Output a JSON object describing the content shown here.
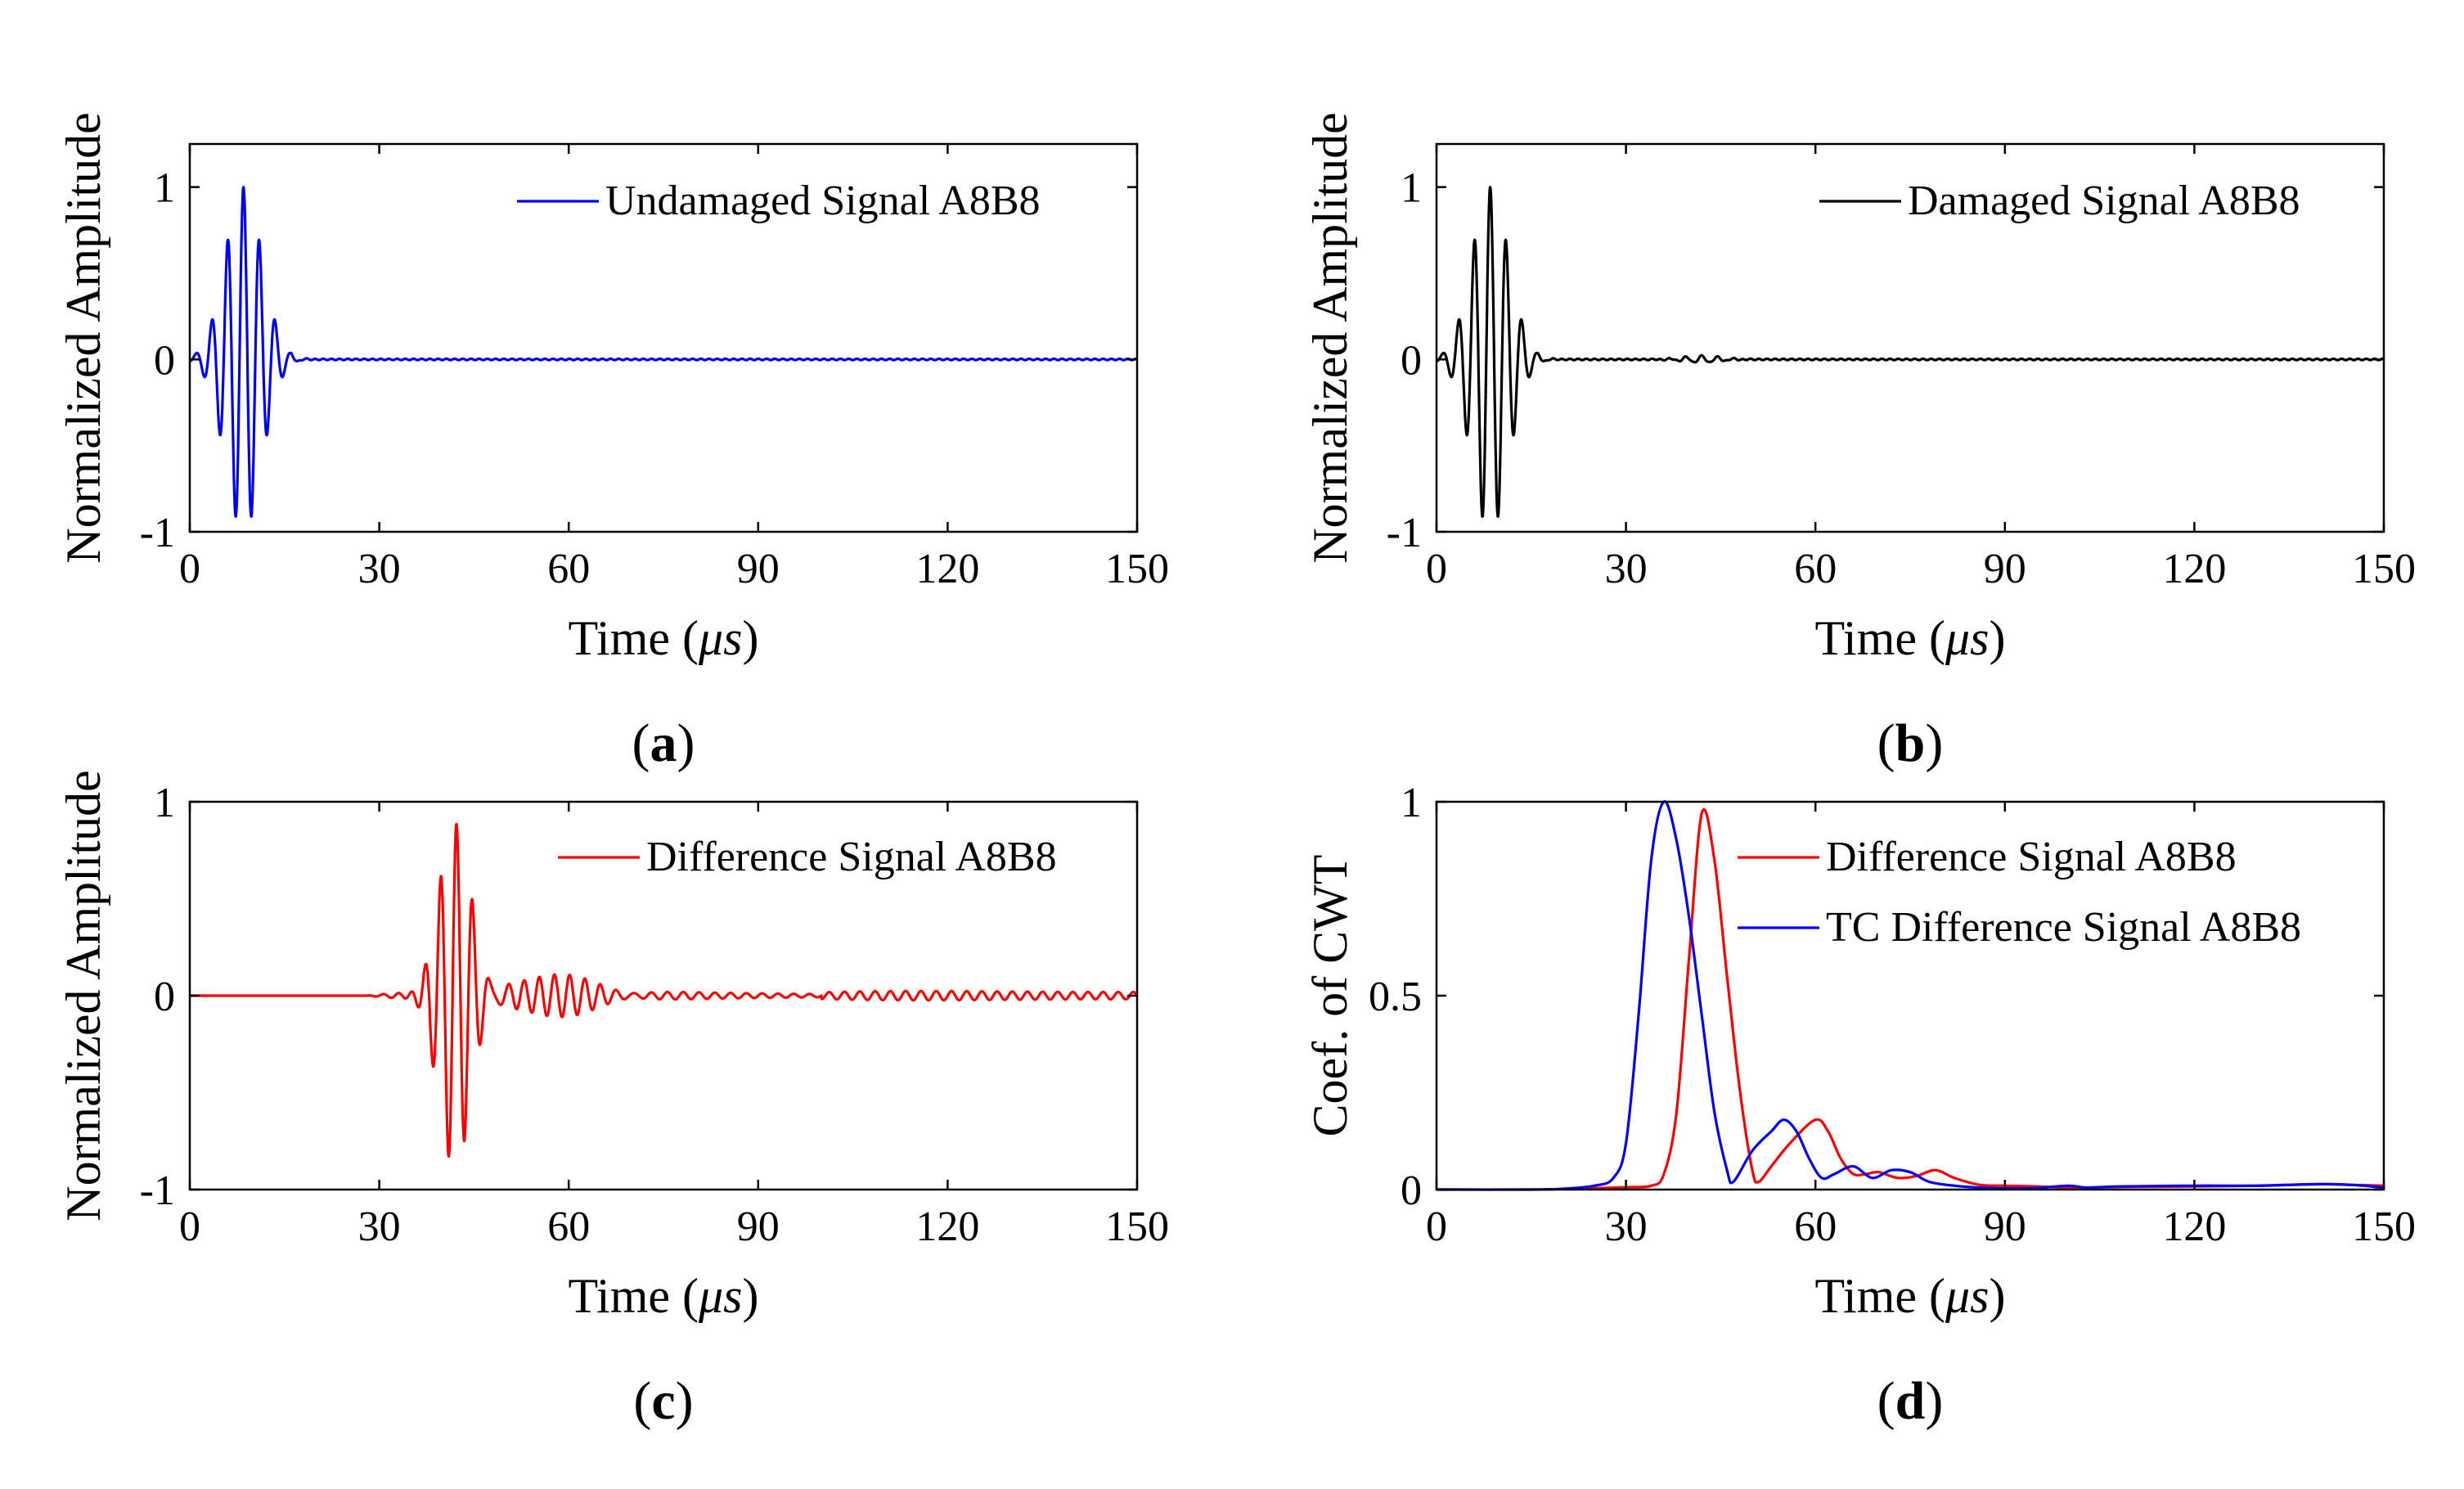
{
  "chart_data": [
    {
      "id": "a",
      "type": "line",
      "panel_label": "a",
      "xlabel": "Time (μs)",
      "xlabel_text": "Time (",
      "xlabel_unit": "μs",
      "xlabel_close": ")",
      "ylabel": "Normalized Amplitude",
      "xlim": [
        0,
        150
      ],
      "ylim": [
        -1,
        1.25
      ],
      "xticks": [
        0,
        30,
        60,
        90,
        120,
        150
      ],
      "yticks": [
        -1,
        0,
        1
      ],
      "legend_position": "top-right",
      "series": [
        {
          "name": "Undamaged Signal A8B8",
          "color": "#0000ff",
          "kind": "burst",
          "center": 8.5,
          "period": 2.5,
          "amp": 1.0,
          "sigma": 2.9,
          "noise": 0.004
        }
      ]
    },
    {
      "id": "b",
      "type": "line",
      "panel_label": "b",
      "xlabel": "Time (μs)",
      "xlabel_text": "Time (",
      "xlabel_unit": "μs",
      "xlabel_close": ")",
      "ylabel": "Normalized Amplitude",
      "xlim": [
        0,
        150
      ],
      "ylim": [
        -1,
        1.25
      ],
      "xticks": [
        0,
        30,
        60,
        90,
        120,
        150
      ],
      "yticks": [
        -1,
        0,
        1
      ],
      "legend_position": "top-right",
      "series": [
        {
          "name": "Damaged Signal A8B8",
          "color": "#000000",
          "kind": "burst",
          "center": 8.5,
          "period": 2.5,
          "amp": 1.0,
          "sigma": 2.9,
          "noise": 0.004,
          "echo": {
            "center": 42,
            "amp": 0.02,
            "sigma": 3
          }
        }
      ]
    },
    {
      "id": "c",
      "type": "line",
      "panel_label": "c",
      "xlabel": "Time (μs)",
      "xlabel_text": "Time (",
      "xlabel_unit": "μs",
      "xlabel_close": ")",
      "ylabel": "Normalized Amplitude",
      "xlim": [
        0,
        150
      ],
      "ylim": [
        -1,
        1
      ],
      "xticks": [
        0,
        30,
        60,
        90,
        120,
        150
      ],
      "yticks": [
        -1,
        0,
        1
      ],
      "legend_position": "top-right",
      "series": [
        {
          "name": "Difference Signal A8B8",
          "color": "#ff0000",
          "kind": "difference"
        }
      ]
    },
    {
      "id": "d",
      "type": "line",
      "panel_label": "d",
      "xlabel": "Time (μs)",
      "xlabel_text": "Time (",
      "xlabel_unit": "μs",
      "xlabel_close": ")",
      "ylabel": "Coef. of CWT",
      "xlim": [
        0,
        150
      ],
      "ylim": [
        0,
        1
      ],
      "xticks": [
        0,
        30,
        60,
        90,
        120,
        150
      ],
      "yticks": [
        0,
        0.5,
        1
      ],
      "legend_position": "top-right",
      "series": [
        {
          "name": "Difference Signal A8B8",
          "color": "#ff0000",
          "kind": "points",
          "x": [
            0,
            15,
            24,
            30,
            34,
            36,
            38,
            40,
            42,
            44,
            46,
            48,
            50,
            51,
            53,
            56,
            60,
            62,
            64,
            66,
            68,
            70,
            73,
            76,
            79,
            82,
            86,
            90,
            95,
            100,
            105,
            110,
            120,
            130,
            140,
            145,
            150
          ],
          "y": [
            0,
            0,
            0.003,
            0.006,
            0.01,
            0.04,
            0.2,
            0.6,
            0.97,
            0.85,
            0.55,
            0.26,
            0.05,
            0.02,
            0.06,
            0.12,
            0.18,
            0.15,
            0.08,
            0.04,
            0.04,
            0.045,
            0.03,
            0.035,
            0.05,
            0.03,
            0.012,
            0.01,
            0.008,
            0.005,
            0.006,
            0.007,
            0.008,
            0.01,
            0.014,
            0.012,
            0.01
          ]
        },
        {
          "name": "TC Difference Signal A8B8",
          "color": "#0000ff",
          "kind": "points",
          "x": [
            0,
            15,
            20,
            25,
            28,
            30,
            32,
            34,
            36,
            38,
            40,
            42,
            44,
            46,
            47,
            50,
            53,
            55,
            57,
            59,
            61,
            63,
            66,
            69,
            72,
            75,
            78,
            82,
            86,
            90,
            95,
            100,
            103,
            108,
            120,
            130,
            140,
            145,
            150
          ],
          "y": [
            0,
            0,
            0.002,
            0.01,
            0.03,
            0.12,
            0.45,
            0.85,
            1.0,
            0.9,
            0.7,
            0.45,
            0.2,
            0.05,
            0.02,
            0.1,
            0.15,
            0.18,
            0.15,
            0.08,
            0.03,
            0.04,
            0.06,
            0.03,
            0.05,
            0.045,
            0.02,
            0.01,
            0.005,
            0.003,
            0.004,
            0.01,
            0.005,
            0.008,
            0.01,
            0.01,
            0.014,
            0.012,
            0.005
          ]
        }
      ]
    }
  ]
}
